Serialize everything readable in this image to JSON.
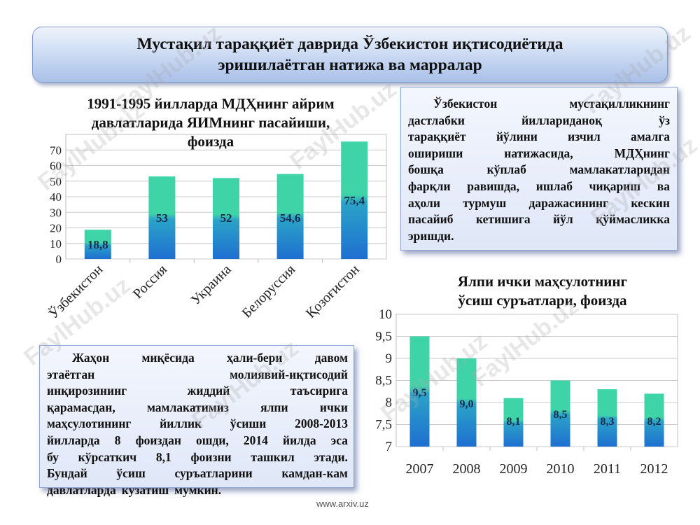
{
  "title": {
    "line1": "Мустақил тараққиёт даврида Ўзбекистон иқтисодиётида",
    "line2": "эришилаётган натижа ва марралар"
  },
  "chart_data": [
    {
      "type": "bar",
      "title_lines": [
        "1991-1995 йилларда МДҲнинг айрим",
        "давлатларида ЯИМнинг пасайиши,",
        "фоизда"
      ],
      "categories": [
        "Ўзбекистон",
        "Россия",
        "Украина",
        "Белоруссия",
        "Қозоғистон"
      ],
      "values": [
        18.8,
        53,
        52,
        54.6,
        75.4
      ],
      "labels": [
        "18,8",
        "53",
        "52",
        "54,6",
        "75,4"
      ],
      "yticks": [
        "0",
        "10",
        "20",
        "30",
        "40",
        "50",
        "60",
        "70"
      ],
      "ylim": [
        0,
        80
      ],
      "grid": true,
      "bar_color_top": "#3fd4a8",
      "bar_color_bottom": "#1f6fd0"
    },
    {
      "type": "bar",
      "title_lines": [
        "Ялпи ички маҳсулотнинг",
        "ўсиш суръатлари, фоизда"
      ],
      "categories": [
        "2007",
        "2008",
        "2009",
        "2010",
        "2011",
        "2012"
      ],
      "values": [
        9.5,
        9.0,
        8.1,
        8.5,
        8.3,
        8.2
      ],
      "labels": [
        "9,5",
        "9,0",
        "8,1",
        "8,5",
        "8,3",
        "8,2"
      ],
      "yticks": [
        "7",
        "7,5",
        "8",
        "8,5",
        "9",
        "9,5",
        "10"
      ],
      "ylim": [
        7,
        10
      ],
      "grid": true,
      "bar_color_top": "#3fd4a8",
      "bar_color_bottom": "#1f6fd0"
    }
  ],
  "textbox_right": {
    "lines": [
      [
        "Ўзбекистон",
        "мустақилликнинг"
      ],
      [
        "дастлабки",
        "йиллариданоқ",
        "ўз"
      ],
      [
        "тараққиёт",
        "йўлини",
        "изчил",
        "амалга"
      ],
      [
        "ошириши",
        "натижасида,",
        "МДҲнинг"
      ],
      [
        "бошқа",
        "кўплаб",
        "мамлакатларидан"
      ],
      [
        "фарқли",
        "равишда,",
        "ишлаб",
        "чиқариш",
        "ва"
      ],
      [
        "аҳоли",
        "турмуш",
        "даражасининг",
        "кескин"
      ],
      [
        "пасайиб",
        "кетишига",
        "йўл",
        "қўймасликка"
      ],
      [
        "эришди."
      ]
    ]
  },
  "textbox_left": {
    "lines": [
      [
        "Жаҳон",
        "миқёсида",
        "ҳали-бери",
        "давом"
      ],
      [
        "этаётган",
        "молиявий-иқтисодий"
      ],
      [
        "инқирозининг",
        "жиддий",
        "таъсирига"
      ],
      [
        "қарамасдан,",
        "мамлакатимиз",
        "ялпи",
        "ички"
      ],
      [
        "маҳсулотининг",
        "йиллик",
        "ўсиши",
        "2008-2013"
      ],
      [
        "йилларда",
        "8",
        "фоиздан",
        "ошди,",
        "2014",
        "йилда",
        "эса"
      ],
      [
        "бу",
        "кўрсаткич",
        "8,1",
        "фоизни",
        "ташкил",
        "этади."
      ],
      [
        "Бундай",
        "ўсиш",
        "суръатларини",
        "камдан-кам"
      ],
      [
        "давлатларда",
        "кузатиш",
        "мумкин."
      ]
    ]
  },
  "footer": "www.arxiv.uz",
  "watermark": "FaylHub.uz"
}
